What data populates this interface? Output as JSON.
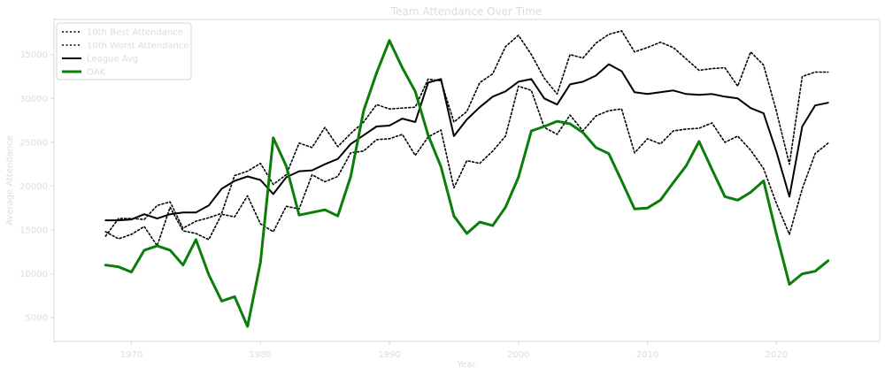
{
  "chart_data": {
    "type": "line",
    "title": "Team Attendance Over Time",
    "xlabel": "Year",
    "ylabel": "Average Attendance",
    "xlim": [
      1964,
      2028
    ],
    "ylim": [
      2300,
      39000
    ],
    "x_ticks": [
      1970,
      1980,
      1990,
      2000,
      2010,
      2020
    ],
    "y_ticks": [
      5000,
      10000,
      15000,
      20000,
      25000,
      30000,
      35000
    ],
    "grid": false,
    "legend_position": "top-left",
    "x": [
      1968,
      1969,
      1970,
      1971,
      1972,
      1973,
      1974,
      1975,
      1976,
      1977,
      1978,
      1979,
      1980,
      1981,
      1982,
      1983,
      1984,
      1985,
      1986,
      1987,
      1988,
      1989,
      1990,
      1991,
      1992,
      1993,
      1994,
      1995,
      1996,
      1997,
      1998,
      1999,
      2000,
      2001,
      2002,
      2003,
      2004,
      2005,
      2006,
      2007,
      2008,
      2009,
      2010,
      2011,
      2012,
      2013,
      2014,
      2015,
      2016,
      2017,
      2018,
      2019,
      2020,
      2021,
      2022,
      2023,
      2024
    ],
    "series": [
      {
        "name": "10th Best Attendance",
        "color": "#000000",
        "style": "dotted",
        "values": [
          14300,
          16300,
          16300,
          16200,
          17800,
          18200,
          15200,
          16000,
          16400,
          16900,
          21200,
          21700,
          22600,
          20200,
          21300,
          24900,
          24400,
          26700,
          24500,
          26000,
          27300,
          29300,
          28800,
          28900,
          29000,
          32200,
          32000,
          27300,
          28500,
          31800,
          32800,
          35900,
          37200,
          35000,
          32300,
          30500,
          35000,
          34600,
          36300,
          37300,
          37700,
          35300,
          35800,
          36400,
          35800,
          34500,
          33200,
          33400,
          33500,
          31400,
          35300,
          33800,
          28500,
          22500,
          32500,
          33000,
          33000
        ]
      },
      {
        "name": "10th Worst Attendance",
        "color": "#000000",
        "style": "dotted",
        "values": [
          14800,
          14000,
          14500,
          15400,
          13200,
          17600,
          14900,
          14600,
          13900,
          16800,
          16500,
          18900,
          15700,
          14800,
          17700,
          17400,
          21300,
          20500,
          21100,
          23800,
          24000,
          25300,
          25400,
          25900,
          23500,
          25600,
          26400,
          19800,
          22900,
          22600,
          24000,
          25700,
          31400,
          30900,
          26700,
          25900,
          28100,
          26300,
          28000,
          28600,
          28800,
          23800,
          25400,
          24800,
          26300,
          26500,
          26600,
          27200,
          25000,
          25700,
          24100,
          22000,
          18000,
          14500,
          19700,
          23700,
          24900
        ]
      },
      {
        "name": "League Avg",
        "color": "#000000",
        "style": "solid",
        "values": [
          16100,
          16100,
          16200,
          16800,
          16300,
          16800,
          17000,
          17000,
          17800,
          19700,
          20600,
          21100,
          20700,
          19100,
          21000,
          21700,
          21800,
          22500,
          23100,
          24800,
          25800,
          26800,
          26900,
          27700,
          27300,
          31800,
          32200,
          25700,
          27600,
          29000,
          30200,
          30800,
          31900,
          32200,
          30000,
          29300,
          31600,
          31900,
          32600,
          33900,
          33100,
          30700,
          30500,
          30700,
          30900,
          30500,
          30400,
          30500,
          30200,
          30000,
          28900,
          28300,
          23900,
          18800,
          26800,
          29200,
          29500
        ]
      },
      {
        "name": "OAK",
        "color": "#0a7d0a",
        "style": "solid-thick",
        "values": [
          11000,
          10800,
          10200,
          12700,
          13200,
          12700,
          11000,
          13900,
          9900,
          6900,
          7400,
          4000,
          11300,
          25500,
          22300,
          16700,
          17000,
          17300,
          16600,
          21100,
          28600,
          32900,
          36600,
          33500,
          30800,
          25800,
          22200,
          16600,
          14600,
          15900,
          15500,
          17600,
          21000,
          26300,
          26800,
          27400,
          27100,
          26100,
          24400,
          23700,
          20600,
          17400,
          17500,
          18400,
          20400,
          22300,
          25100,
          21900,
          18800,
          18400,
          19300,
          20600,
          14500,
          8800,
          10000,
          10300,
          11500
        ]
      }
    ]
  }
}
